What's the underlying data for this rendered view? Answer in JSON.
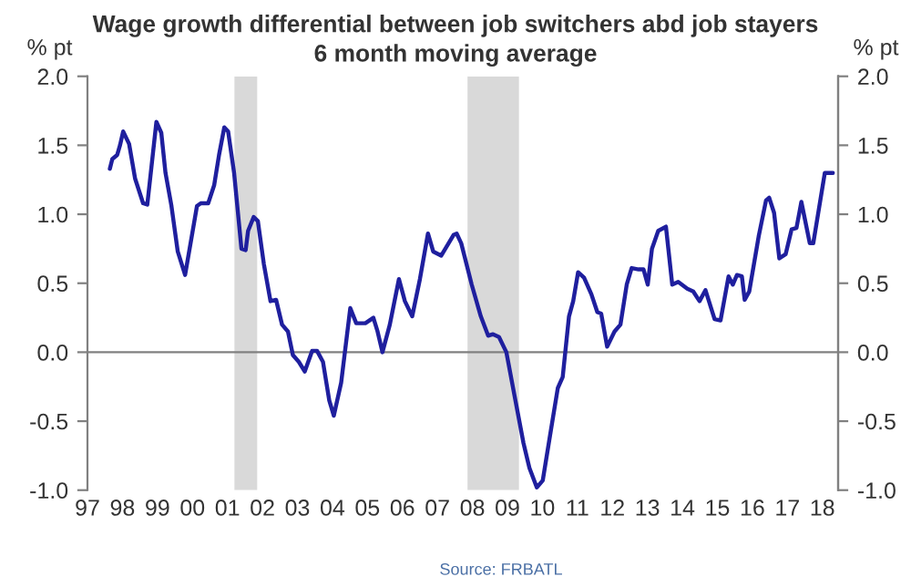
{
  "chart_data": {
    "type": "line",
    "title": "Wage growth differential between job switchers abd job stayers",
    "subtitle": "6 month moving average",
    "ylabel": "% pt",
    "y2label": "% pt",
    "annotations": [
      "Source: FRBATL"
    ],
    "xlim": [
      1997,
      2018.45
    ],
    "xticks": [
      {
        "value": 1997,
        "label": "97"
      },
      {
        "value": 1998,
        "label": "98"
      },
      {
        "value": 1999,
        "label": "99"
      },
      {
        "value": 2000,
        "label": "00"
      },
      {
        "value": 2001,
        "label": "01"
      },
      {
        "value": 2002,
        "label": "02"
      },
      {
        "value": 2003,
        "label": "03"
      },
      {
        "value": 2004,
        "label": "04"
      },
      {
        "value": 2005,
        "label": "05"
      },
      {
        "value": 2006,
        "label": "06"
      },
      {
        "value": 2007,
        "label": "07"
      },
      {
        "value": 2008,
        "label": "08"
      },
      {
        "value": 2009,
        "label": "09"
      },
      {
        "value": 2010,
        "label": "10"
      },
      {
        "value": 2011,
        "label": "11"
      },
      {
        "value": 2012,
        "label": "12"
      },
      {
        "value": 2013,
        "label": "13"
      },
      {
        "value": 2014,
        "label": "14"
      },
      {
        "value": 2015,
        "label": "15"
      },
      {
        "value": 2016,
        "label": "16"
      },
      {
        "value": 2017,
        "label": "17"
      },
      {
        "value": 2018,
        "label": "18"
      }
    ],
    "ylim": [
      -1.0,
      2.0
    ],
    "yticks": [
      {
        "value": -1.0,
        "label": "-1.0"
      },
      {
        "value": -0.5,
        "label": "-0.5"
      },
      {
        "value": 0.0,
        "label": "0.0"
      },
      {
        "value": 0.5,
        "label": "0.5"
      },
      {
        "value": 1.0,
        "label": "1.0"
      },
      {
        "value": 1.5,
        "label": "1.5"
      },
      {
        "value": 2.0,
        "label": "2.0"
      }
    ],
    "y2lim": [
      -1.0,
      2.0
    ],
    "y2ticks": [
      {
        "value": -1.0,
        "label": "-1.0"
      },
      {
        "value": -0.5,
        "label": "-0.5"
      },
      {
        "value": 0.0,
        "label": "0.0"
      },
      {
        "value": 0.5,
        "label": "0.5"
      },
      {
        "value": 1.0,
        "label": "1.0"
      },
      {
        "value": 1.5,
        "label": "1.5"
      },
      {
        "value": 2.0,
        "label": "2.0"
      }
    ],
    "bands": [
      {
        "axis": "x",
        "from": 2001.2,
        "to": 2001.85,
        "color": "#d9d9d9"
      },
      {
        "axis": "x",
        "from": 2007.86,
        "to": 2009.33,
        "color": "#d9d9d9"
      }
    ],
    "series": [
      {
        "color": "#1f1f9e",
        "x": [
          1997.64,
          1997.71,
          1997.85,
          1997.93,
          1998.02,
          1998.19,
          1998.36,
          1998.59,
          1998.71,
          1998.97,
          1999.11,
          1999.23,
          1999.4,
          1999.58,
          1999.79,
          2000.13,
          2000.24,
          2000.45,
          2000.62,
          2000.76,
          2000.91,
          2001.02,
          2001.19,
          2001.4,
          2001.52,
          2001.59,
          2001.75,
          2001.87,
          2002.04,
          2002.23,
          2002.39,
          2002.56,
          2002.73,
          2002.87,
          2003.04,
          2003.21,
          2003.42,
          2003.56,
          2003.73,
          2003.91,
          2004.04,
          2004.25,
          2004.51,
          2004.68,
          2004.94,
          2005.17,
          2005.29,
          2005.43,
          2005.64,
          2005.9,
          2006.07,
          2006.28,
          2006.5,
          2006.73,
          2006.88,
          2007.11,
          2007.32,
          2007.46,
          2007.55,
          2007.68,
          2007.98,
          2008.24,
          2008.45,
          2008.59,
          2008.76,
          2008.97,
          2009.2,
          2009.46,
          2009.63,
          2009.84,
          2010.01,
          2010.24,
          2010.44,
          2010.58,
          2010.76,
          2010.88,
          2011.02,
          2011.19,
          2011.4,
          2011.57,
          2011.68,
          2011.85,
          2012.06,
          2012.23,
          2012.41,
          2012.55,
          2012.75,
          2012.89,
          2013.01,
          2013.13,
          2013.31,
          2013.53,
          2013.71,
          2013.88,
          2014.14,
          2014.31,
          2014.49,
          2014.66,
          2014.92,
          2015.09,
          2015.32,
          2015.44,
          2015.56,
          2015.7,
          2015.78,
          2015.91,
          2016.18,
          2016.39,
          2016.48,
          2016.62,
          2016.77,
          2016.95,
          2017.12,
          2017.26,
          2017.4,
          2017.64,
          2017.74,
          2018.07,
          2018.3
        ],
        "values": [
          1.33,
          1.4,
          1.43,
          1.5,
          1.6,
          1.51,
          1.26,
          1.08,
          1.07,
          1.67,
          1.59,
          1.3,
          1.06,
          0.73,
          0.56,
          1.06,
          1.08,
          1.08,
          1.21,
          1.43,
          1.63,
          1.6,
          1.3,
          0.75,
          0.74,
          0.88,
          0.98,
          0.95,
          0.64,
          0.37,
          0.38,
          0.2,
          0.15,
          -0.02,
          -0.07,
          -0.14,
          0.01,
          0.01,
          -0.07,
          -0.35,
          -0.46,
          -0.22,
          0.32,
          0.21,
          0.21,
          0.25,
          0.15,
          0.0,
          0.2,
          0.53,
          0.37,
          0.26,
          0.53,
          0.86,
          0.73,
          0.7,
          0.79,
          0.85,
          0.86,
          0.79,
          0.49,
          0.26,
          0.12,
          0.13,
          0.11,
          0.0,
          -0.31,
          -0.66,
          -0.84,
          -0.98,
          -0.93,
          -0.57,
          -0.26,
          -0.18,
          0.26,
          0.37,
          0.58,
          0.54,
          0.42,
          0.29,
          0.28,
          0.04,
          0.15,
          0.2,
          0.49,
          0.61,
          0.6,
          0.6,
          0.49,
          0.75,
          0.88,
          0.91,
          0.49,
          0.51,
          0.46,
          0.44,
          0.37,
          0.45,
          0.24,
          0.23,
          0.55,
          0.49,
          0.56,
          0.55,
          0.38,
          0.44,
          0.84,
          1.1,
          1.12,
          1.01,
          0.68,
          0.71,
          0.89,
          0.9,
          1.09,
          0.79,
          0.79,
          1.3,
          1.3
        ]
      }
    ]
  }
}
